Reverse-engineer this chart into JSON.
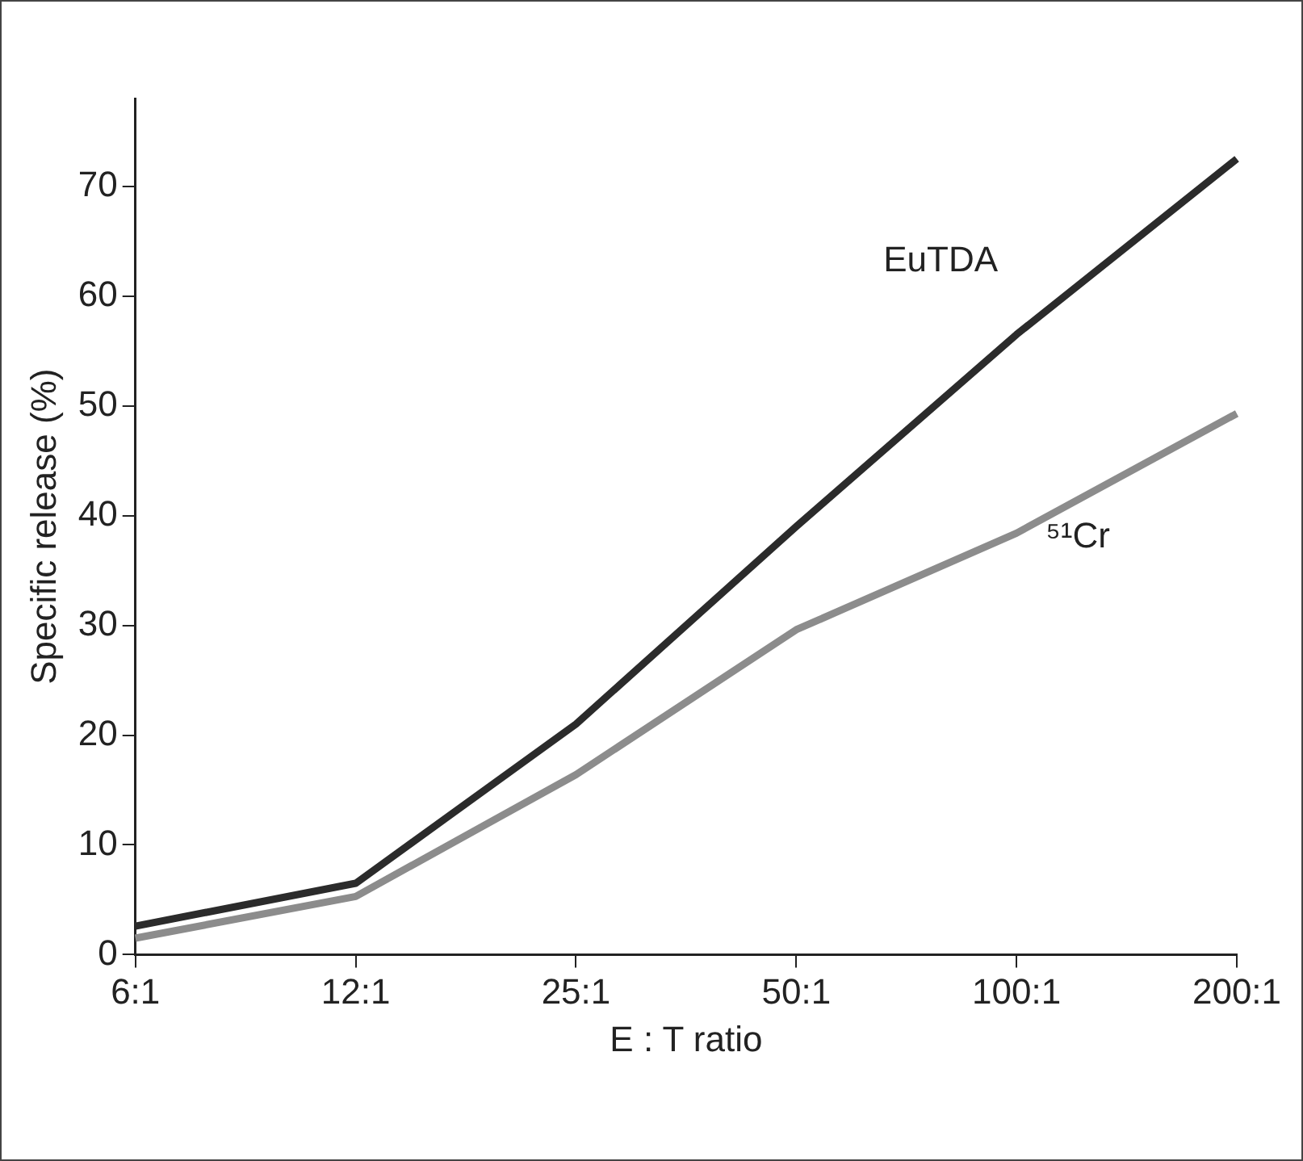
{
  "chart_data": {
    "type": "line",
    "xlabel": "E : T ratio",
    "ylabel": "Specific release (%)",
    "categories": [
      "6:1",
      "12:1",
      "25:1",
      "50:1",
      "100:1",
      "200:1"
    ],
    "series": [
      {
        "name": "EuTDA",
        "color": "#2b2b2b",
        "values": [
          2.6,
          6.5,
          21,
          39,
          56.5,
          72.5
        ]
      },
      {
        "name": "⁵¹Cr",
        "color": "#8c8c8c",
        "values": [
          1.5,
          5.3,
          16.4,
          29.6,
          38.4,
          49.3
        ]
      }
    ],
    "ylim": [
      0,
      78
    ],
    "yticks": [
      0,
      10,
      20,
      30,
      40,
      50,
      60,
      70
    ],
    "grid": false,
    "legend": false,
    "marker": "none",
    "line_style": "solid"
  }
}
